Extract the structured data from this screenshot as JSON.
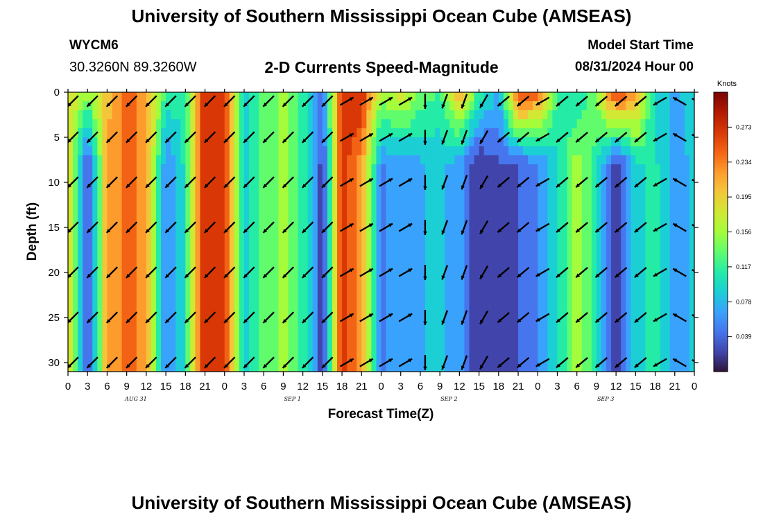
{
  "header": {
    "title": "University of Southern Mississippi Ocean Cube (AMSEAS)",
    "station_id": "WYCM6",
    "location": "30.3260N  89.3260W",
    "subtitle": "2-D Currents Speed-Magnitude",
    "model_start_label": "Model Start Time",
    "model_start_value": "08/31/2024 Hour 00"
  },
  "footer": {
    "title": "University of Southern Mississippi Ocean Cube (AMSEAS)"
  },
  "colorbar": {
    "unit_label": "Knots",
    "tick_labels": [
      "0.273",
      "0.234",
      "0.195",
      "0.156",
      "0.117",
      "0.078",
      "0.039"
    ],
    "tick_values": [
      0.273,
      0.234,
      0.195,
      0.156,
      0.117,
      0.078,
      0.039
    ],
    "range": [
      0,
      0.312
    ],
    "palette": [
      "#30123b",
      "#4145ab",
      "#4675ed",
      "#39a2fc",
      "#1bcfd4",
      "#24eca6",
      "#61fc6c",
      "#a4fc3b",
      "#d1e834",
      "#f3c63a",
      "#fe9b2d",
      "#f36315",
      "#d93806",
      "#b11901",
      "#7a0403"
    ]
  },
  "chart_data": {
    "type": "heatmap",
    "title": "2-D Currents Speed-Magnitude",
    "xlabel": "Forecast Time(Z)",
    "ylabel": "Depth (ft)",
    "x_range_hours": [
      0,
      96
    ],
    "y_range_ft": [
      0,
      31
    ],
    "x_ticks_hours": [
      0,
      3,
      6,
      9,
      12,
      15,
      18,
      21,
      24,
      27,
      30,
      33,
      36,
      39,
      42,
      45,
      48,
      51,
      54,
      57,
      60,
      63,
      66,
      69,
      72,
      75,
      78,
      81,
      84,
      87,
      90,
      93,
      96
    ],
    "x_tick_labels": [
      "0",
      "3",
      "6",
      "9",
      "12",
      "15",
      "18",
      "21",
      "0",
      "3",
      "6",
      "9",
      "12",
      "15",
      "18",
      "21",
      "0",
      "3",
      "6",
      "9",
      "12",
      "15",
      "18",
      "21",
      "0",
      "3",
      "6",
      "9",
      "12",
      "15",
      "18",
      "21",
      "0"
    ],
    "y_ticks": [
      0,
      5,
      10,
      15,
      20,
      25,
      30
    ],
    "y_tick_labels": [
      "0",
      "5",
      "10",
      "15",
      "20",
      "25",
      "30"
    ],
    "day_labels": [
      {
        "hour": 12,
        "text": "AUG 31"
      },
      {
        "hour": 36,
        "text": "SEP 1"
      },
      {
        "hour": 60,
        "text": "SEP 2"
      },
      {
        "hour": 84,
        "text": "SEP 3"
      }
    ],
    "time_steps_hours": [
      0,
      3,
      6,
      9,
      12,
      15,
      18,
      21,
      24,
      27,
      30,
      33,
      36,
      39,
      42,
      45,
      48,
      51,
      54,
      57,
      60,
      63,
      66,
      69,
      72,
      75,
      78,
      81,
      84,
      87,
      90,
      93,
      96
    ],
    "speed_profile_knots": [
      0.19,
      0.03,
      0.21,
      0.24,
      0.22,
      0.06,
      0.11,
      0.27,
      0.25,
      0.09,
      0.13,
      0.15,
      0.12,
      0.03,
      0.26,
      0.22,
      0.06,
      0.07,
      0.08,
      0.09,
      0.07,
      0.02,
      0.04,
      0.04,
      0.06,
      0.1,
      0.16,
      0.11,
      0.02,
      0.1,
      0.11,
      0.07,
      0.09
    ],
    "surface_speed_knots": [
      0.19,
      0.15,
      0.2,
      0.24,
      0.22,
      0.12,
      0.11,
      0.27,
      0.27,
      0.1,
      0.13,
      0.15,
      0.12,
      0.05,
      0.27,
      0.27,
      0.16,
      0.18,
      0.14,
      0.12,
      0.21,
      0.12,
      0.08,
      0.26,
      0.24,
      0.12,
      0.1,
      0.15,
      0.26,
      0.22,
      0.09,
      0.08,
      0.09
    ],
    "arrow_depths_ft": [
      1,
      5,
      10,
      15,
      20,
      25,
      30
    ],
    "arrow_direction_deg": [
      225,
      225,
      225,
      225,
      225,
      225,
      225,
      225,
      225,
      225,
      225,
      225,
      225,
      225,
      60,
      60,
      60,
      60,
      180,
      200,
      200,
      210,
      230,
      230,
      240,
      230,
      230,
      230,
      230,
      230,
      240,
      300,
      290
    ]
  }
}
